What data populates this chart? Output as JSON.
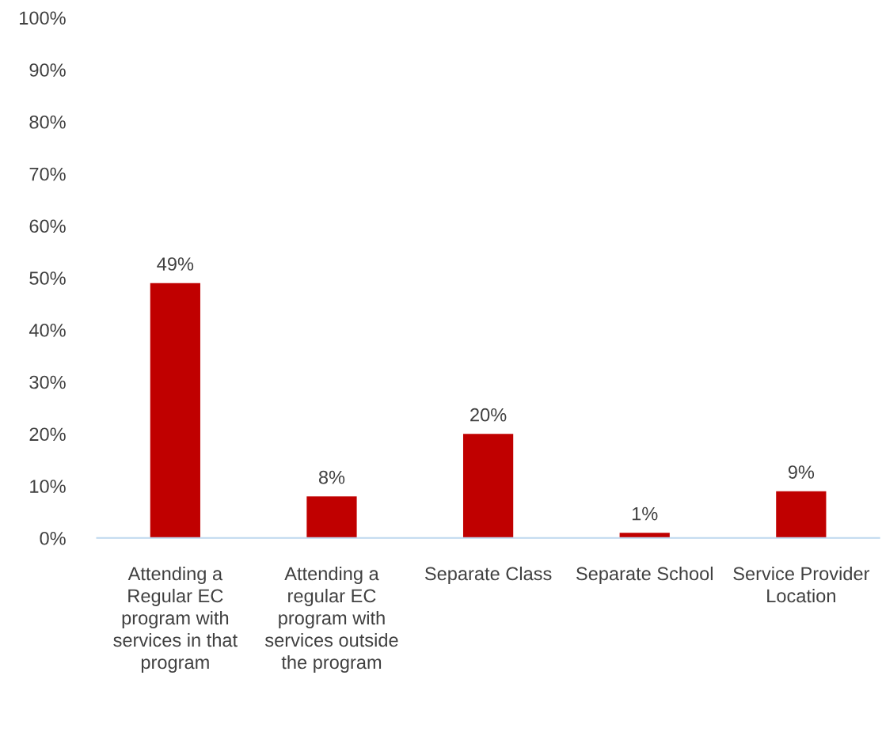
{
  "chart_data": {
    "type": "bar",
    "categories": [
      "Attending a Regular EC program with services in that program",
      "Attending a regular EC program with services outside the program",
      "Separate Class",
      "Separate School",
      "Service Provider Location"
    ],
    "values": [
      49,
      8,
      20,
      1,
      9
    ],
    "value_labels": [
      "49%",
      "8%",
      "20%",
      "1%",
      "9%"
    ],
    "color": "#c00000",
    "ylim": [
      0,
      100
    ],
    "yticks": [
      {
        "value": 0,
        "label": "0%"
      },
      {
        "value": 10,
        "label": "10%"
      },
      {
        "value": 20,
        "label": "20%"
      },
      {
        "value": 30,
        "label": "30%"
      },
      {
        "value": 40,
        "label": "40%"
      },
      {
        "value": 50,
        "label": "50%"
      },
      {
        "value": 60,
        "label": "60%"
      },
      {
        "value": 70,
        "label": "70%"
      },
      {
        "value": 80,
        "label": "80%"
      },
      {
        "value": 90,
        "label": "90%"
      },
      {
        "value": 100,
        "label": "100%"
      }
    ],
    "grid": false,
    "legend": false
  }
}
